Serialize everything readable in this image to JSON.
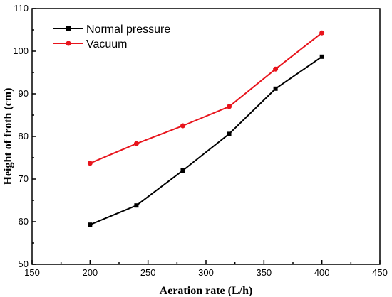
{
  "chart_data": {
    "type": "line",
    "xlabel": "Aeration rate (L/h)",
    "ylabel": "Height of froth (cm)",
    "xlim": [
      150,
      450
    ],
    "ylim": [
      50,
      110
    ],
    "xticks": [
      150,
      200,
      250,
      300,
      350,
      400,
      450
    ],
    "yticks": [
      50,
      60,
      70,
      80,
      90,
      100,
      110
    ],
    "grid": false,
    "legend_position": "top-left",
    "x": [
      200,
      240,
      280,
      320,
      360,
      400
    ],
    "series": [
      {
        "name": "Normal pressure",
        "color": "#000000",
        "marker": "square",
        "values": [
          59.3,
          63.8,
          72.0,
          80.6,
          91.2,
          98.7
        ]
      },
      {
        "name": "Vacuum",
        "color": "#e8141c",
        "marker": "circle",
        "values": [
          73.7,
          78.3,
          82.5,
          87.0,
          95.8,
          104.3
        ]
      }
    ]
  }
}
